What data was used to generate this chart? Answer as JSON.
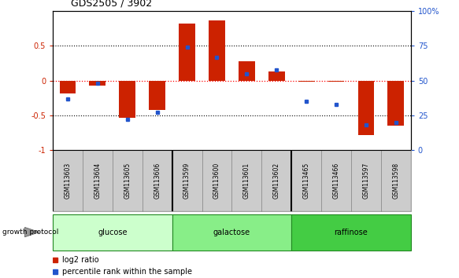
{
  "title": "GDS2505 / 3902",
  "samples": [
    "GSM113603",
    "GSM113604",
    "GSM113605",
    "GSM113606",
    "GSM113599",
    "GSM113600",
    "GSM113601",
    "GSM113602",
    "GSM113465",
    "GSM113466",
    "GSM113597",
    "GSM113598"
  ],
  "log2_ratio": [
    -0.18,
    -0.07,
    -0.54,
    -0.42,
    0.82,
    0.87,
    0.28,
    0.13,
    -0.02,
    -0.02,
    -0.78,
    -0.65
  ],
  "percentile_rank": [
    37,
    48,
    22,
    27,
    74,
    67,
    55,
    58,
    35,
    33,
    18,
    20
  ],
  "groups": [
    {
      "label": "glucose",
      "start": 0,
      "end": 4,
      "color": "#ccffcc"
    },
    {
      "label": "galactose",
      "start": 4,
      "end": 8,
      "color": "#88ee88"
    },
    {
      "label": "raffinose",
      "start": 8,
      "end": 12,
      "color": "#44cc44"
    }
  ],
  "ylim": [
    -1,
    1
  ],
  "yticks_left": [
    -1,
    -0.5,
    0,
    0.5
  ],
  "yticks_right": [
    0,
    25,
    50,
    75,
    100
  ],
  "bar_color": "#cc2200",
  "dot_color": "#2255cc",
  "label_color_left": "#cc2200",
  "label_color_right": "#2255cc",
  "bar_width": 0.55,
  "group_border_color": "#228822",
  "sample_box_color": "#cccccc",
  "fig_width": 5.83,
  "fig_height": 3.54
}
